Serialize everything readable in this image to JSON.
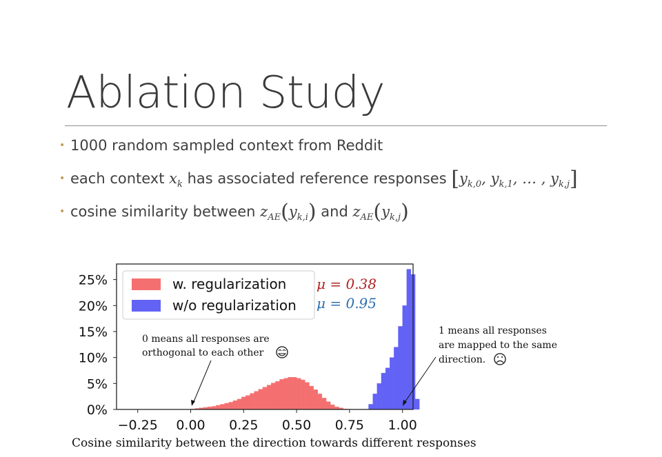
{
  "slide": {
    "title": "Ablation Study",
    "bullets": {
      "b1": "1000 random sampled context from Reddit",
      "b2_pre": "each context ",
      "b2_mid": " has associated reference responses ",
      "b2_var": "x",
      "b2_var_sub": "k",
      "b2_seq": [
        "y",
        "k,0",
        "y",
        "k,1",
        "…",
        "y",
        "k,j"
      ],
      "b3_pre": "cosine similarity between ",
      "b3_mid": " and ",
      "b3_fn": "z",
      "b3_fn_sub": "AE",
      "b3_arg1_sub": "k,i",
      "b3_arg2_sub": "k,j"
    },
    "caption": "Cosine similarity between the direction towards different responses"
  },
  "chart_data": {
    "type": "bar",
    "xlim": [
      -0.35,
      1.05
    ],
    "ylim": [
      0,
      0.28
    ],
    "xticks": [
      "−0.25",
      "0.00",
      "0.25",
      "0.50",
      "0.75",
      "1.00"
    ],
    "xtick_values": [
      -0.25,
      0.0,
      0.25,
      0.5,
      0.75,
      1.0
    ],
    "yticks": [
      "0%",
      "5%",
      "10%",
      "15%",
      "20%",
      "25%"
    ],
    "ytick_values": [
      0,
      0.05,
      0.1,
      0.15,
      0.2,
      0.25
    ],
    "bin_width": 0.02,
    "legend_position": "upper-left",
    "series": [
      {
        "name": "w. regularization",
        "color": "#f47070",
        "bins_start": 0.0,
        "values": [
          0.001,
          0.002,
          0.003,
          0.004,
          0.005,
          0.006,
          0.008,
          0.01,
          0.012,
          0.014,
          0.017,
          0.02,
          0.024,
          0.027,
          0.031,
          0.035,
          0.039,
          0.043,
          0.047,
          0.051,
          0.054,
          0.058,
          0.06,
          0.062,
          0.062,
          0.06,
          0.057,
          0.052,
          0.045,
          0.038,
          0.03,
          0.022,
          0.015,
          0.009,
          0.005,
          0.003,
          0.001,
          0.0005
        ]
      },
      {
        "name": "w/o regularization",
        "color": "#6262f5",
        "bins_start": 0.84,
        "values": [
          0.01,
          0.03,
          0.05,
          0.07,
          0.08,
          0.1,
          0.12,
          0.16,
          0.2,
          0.27,
          0.26,
          0.02
        ]
      }
    ],
    "annotations": {
      "mu_reg": "μ = 0.38",
      "mu_reg_color": "#b22222",
      "mu_noreg": "μ = 0.95",
      "mu_noreg_color": "#2b6fb0",
      "note_left_1": "0 means all responses are",
      "note_left_2": "orthogonal to each other",
      "note_right_1": "1 means all responses",
      "note_right_2": "are mapped to the same",
      "note_right_3": "direction.",
      "emoji_happy": "happy-face-icon",
      "emoji_sad": "sad-face-icon"
    }
  }
}
